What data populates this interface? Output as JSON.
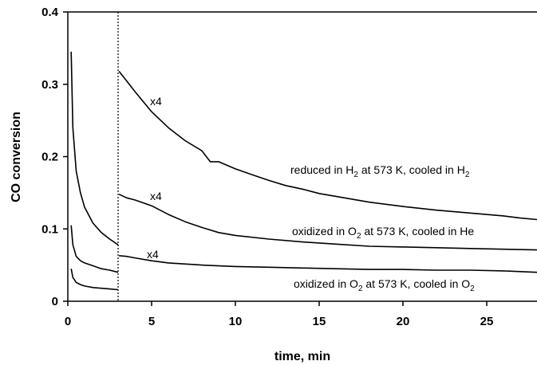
{
  "chart_data": {
    "type": "line",
    "title": "",
    "xlabel": "time, min",
    "ylabel": "CO conversion",
    "xlim": [
      0,
      28
    ],
    "ylim": [
      0,
      0.4
    ],
    "x_ticks": [
      0,
      5,
      10,
      15,
      20,
      25
    ],
    "x_tick_labels": [
      "0",
      "5",
      "10",
      "15",
      "20",
      "25"
    ],
    "y_ticks": [
      0,
      0.1,
      0.2,
      0.3,
      0.4
    ],
    "y_tick_labels": [
      "0",
      "0.1",
      "0.2",
      "0.3",
      "0.4"
    ],
    "grid": false,
    "legend": "none",
    "divider_x": 3,
    "series": [
      {
        "name": "reduced in H2 at 573 K, cooled in H2",
        "label_parts": [
          "reduced in H",
          "2",
          " at 573 K, cooled in H",
          "2"
        ],
        "multiplier_label": "x4",
        "x": [
          0.2,
          0.3,
          0.5,
          0.75,
          1.0,
          1.5,
          2.0,
          2.5,
          3.0,
          3.05,
          3.5,
          4,
          5,
          6,
          7,
          8,
          8.5,
          9,
          10,
          11,
          12,
          13,
          14,
          15,
          16,
          18,
          20,
          22,
          24,
          26,
          27,
          28
        ],
        "y": [
          0.345,
          0.24,
          0.18,
          0.15,
          0.13,
          0.108,
          0.095,
          0.086,
          0.078,
          0.318,
          0.305,
          0.29,
          0.262,
          0.24,
          0.222,
          0.208,
          0.193,
          0.193,
          0.183,
          0.175,
          0.167,
          0.16,
          0.155,
          0.149,
          0.145,
          0.137,
          0.131,
          0.126,
          0.122,
          0.118,
          0.115,
          0.113
        ]
      },
      {
        "name": "oxidized in O2 at 573 K, cooled in He",
        "label_parts": [
          "oxidized in O",
          "2",
          " at 573 K, cooled in He"
        ],
        "multiplier_label": "x4",
        "x": [
          0.2,
          0.3,
          0.5,
          0.75,
          1.0,
          1.5,
          2.0,
          2.5,
          3.0,
          3.05,
          3.5,
          4,
          5,
          6,
          7,
          8,
          9,
          10,
          12,
          14,
          16,
          18,
          20,
          22,
          24,
          26,
          28
        ],
        "y": [
          0.105,
          0.078,
          0.062,
          0.056,
          0.053,
          0.049,
          0.045,
          0.043,
          0.04,
          0.148,
          0.143,
          0.14,
          0.132,
          0.12,
          0.11,
          0.102,
          0.095,
          0.091,
          0.086,
          0.082,
          0.079,
          0.076,
          0.075,
          0.074,
          0.073,
          0.072,
          0.071
        ]
      },
      {
        "name": "oxidized in O2 at 573 K, cooled in O2",
        "label_parts": [
          "oxidized in O",
          "2",
          " at 573 K, cooled in O",
          "2"
        ],
        "multiplier_label": "x4",
        "x": [
          0.2,
          0.3,
          0.5,
          0.75,
          1.0,
          1.5,
          2.0,
          2.5,
          3.0,
          3.05,
          3.5,
          4,
          5,
          6,
          8,
          10,
          12,
          14,
          16,
          18,
          20,
          22,
          24,
          26,
          28
        ],
        "y": [
          0.045,
          0.033,
          0.026,
          0.023,
          0.021,
          0.019,
          0.018,
          0.017,
          0.016,
          0.063,
          0.062,
          0.06,
          0.056,
          0.053,
          0.05,
          0.048,
          0.047,
          0.046,
          0.045,
          0.044,
          0.044,
          0.043,
          0.043,
          0.042,
          0.04
        ]
      }
    ]
  }
}
